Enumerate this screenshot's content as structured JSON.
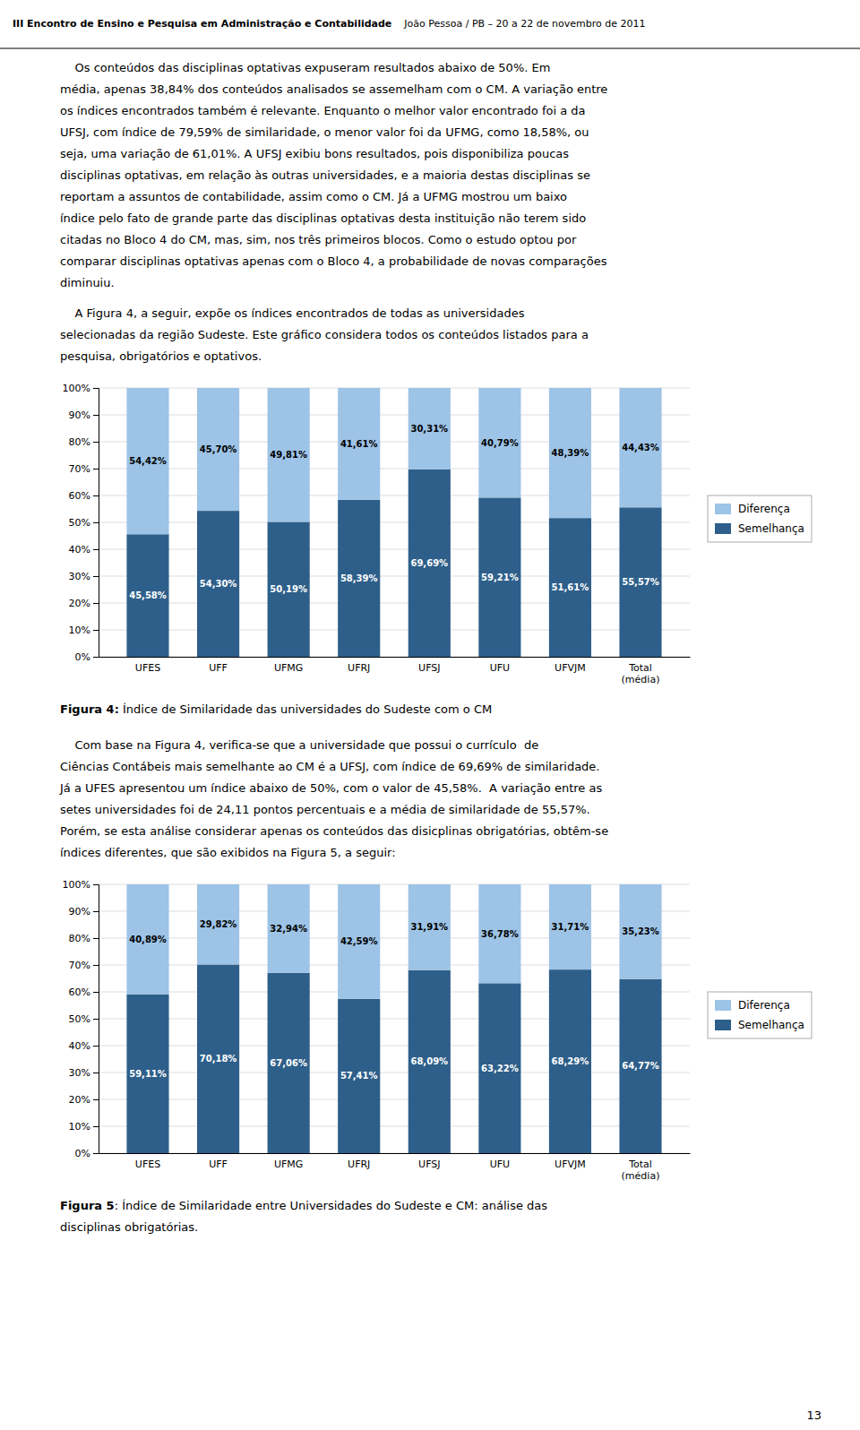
{
  "page": {
    "header_bold": "III Encontro de Ensino e Pesquisa em Administração e Contabilidade",
    "header_normal": "    João Pessoa / PB – 20 a 22 de novembro de 2011",
    "para1_lines": [
      "    Os conteúdos das disciplinas optativas expuseram resultados abaixo de 50%. Em",
      "média, apenas 38,84% dos conteúdos analisados se assemelham com o CM. A variação entre",
      "os índices encontrados também é relevante. Enquanto o melhor valor encontrado foi a da",
      "UFSJ, com índice de 79,59% de similaridade, o menor valor foi da UFMG, como 18,58%, ou",
      "seja, uma variação de 61,01%. A UFSJ exibiu bons resultados, pois disponibiliza poucas",
      "disciplinas optativas, em relação às outras universidades, e a maioria destas disciplinas se",
      "reportam a assuntos de contabilidade, assim como o CM. Já a UFMG mostrou um baixo",
      "índice pelo fato de grande parte das disciplinas optativas desta instituição não terem sido",
      "citadas no Bloco 4 do CM, mas, sim, nos três primeiros blocos. Como o estudo optou por",
      "comparar disciplinas optativas apenas com o Bloco 4, a probabilidade de novas comparações",
      "diminuiu."
    ],
    "para2_lines": [
      "    A Figura 4, a seguir, expõe os índices encontrados de todas as universidades",
      "selecionadas da região Sudeste. Este gráfico considera todos os conteúdos listados para a",
      "pesquisa, obrigatórios e optativos."
    ],
    "caption1_bold": "Figura 4:",
    "caption1_normal": " Índice de Similaridade das universidades do Sudeste com o CM",
    "para3_lines": [
      "    Com base na Figura 4, verifica-se que a universidade que possui o currículo  de",
      "Ciências Contábeis mais semelhante ao CM é a UFSJ, com índice de 69,69% de similaridade.",
      "Já a UFES apresentou um índice abaixo de 50%, com o valor de 45,58%.  A variação entre as",
      "setes universidades foi de 24,11 pontos percentuais e a média de similaridade de 55,57%.",
      "Porém, se esta análise considerar apenas os conteúdos das disicplinas obrigatórias, obtêm-se",
      "índices diferentes, que são exibidos na Figura 5, a seguir:"
    ],
    "caption2_bold": "Figura 5",
    "caption2_normal": ": Índice de Similaridade entre Universidades do Sudeste e CM: análise das",
    "caption2_line2": "disciplinas obrigatórias.",
    "page_number": "13"
  },
  "chart_data": [
    {
      "type": "bar",
      "stacked": true,
      "categories": [
        "UFES",
        "UFF",
        "UFMG",
        "UFRJ",
        "UFSJ",
        "UFU",
        "UFVJM",
        "Total\n(média)"
      ],
      "series": [
        {
          "name": "Semelhança",
          "color": "#2E5F8A",
          "values": [
            45.58,
            54.3,
            50.19,
            58.39,
            69.69,
            59.21,
            51.61,
            55.57
          ],
          "value_labels": [
            "45,58%",
            "54,30%",
            "50,19%",
            "58,39%",
            "69,69%",
            "59,21%",
            "51,61%",
            "55,57%"
          ]
        },
        {
          "name": "Diferença",
          "color": "#9DC3E6",
          "values": [
            54.42,
            45.7,
            49.81,
            41.61,
            30.31,
            40.79,
            48.39,
            44.43
          ],
          "value_labels": [
            "54,42%",
            "45,70%",
            "49,81%",
            "41,61%",
            "30,31%",
            "40,79%",
            "48,39%",
            "44,43%"
          ]
        }
      ],
      "ylim": [
        0,
        100
      ],
      "yticks": [
        {
          "value": 0,
          "label": "0%"
        },
        {
          "value": 10,
          "label": "10%"
        },
        {
          "value": 20,
          "label": "20%"
        },
        {
          "value": 30,
          "label": "30%"
        },
        {
          "value": 40,
          "label": "40%"
        },
        {
          "value": 50,
          "label": "50%"
        },
        {
          "value": 60,
          "label": "60%"
        },
        {
          "value": 70,
          "label": "70%"
        },
        {
          "value": 80,
          "label": "80%"
        },
        {
          "value": 90,
          "label": "90%"
        },
        {
          "value": 100,
          "label": "100%"
        }
      ],
      "grid": true,
      "legend": "right",
      "data_labels": true
    },
    {
      "type": "bar",
      "stacked": true,
      "categories": [
        "UFES",
        "UFF",
        "UFMG",
        "UFRJ",
        "UFSJ",
        "UFU",
        "UFVJM",
        "Total\n(média)"
      ],
      "series": [
        {
          "name": "Semelhança",
          "color": "#2E5F8A",
          "values": [
            59.11,
            70.18,
            67.06,
            57.41,
            68.09,
            63.22,
            68.29,
            64.77
          ],
          "value_labels": [
            "59,11%",
            "70,18%",
            "67,06%",
            "57,41%",
            "68,09%",
            "63,22%",
            "68,29%",
            "64,77%"
          ]
        },
        {
          "name": "Diferença",
          "color": "#9DC3E6",
          "values": [
            40.89,
            29.82,
            32.94,
            42.59,
            31.91,
            36.78,
            31.71,
            35.23
          ],
          "value_labels": [
            "40,89%",
            "29,82%",
            "32,94%",
            "42,59%",
            "31,91%",
            "36,78%",
            "31,71%",
            "35,23%"
          ]
        }
      ],
      "ylim": [
        0,
        100
      ],
      "yticks": [
        {
          "value": 0,
          "label": "0%"
        },
        {
          "value": 10,
          "label": "10%"
        },
        {
          "value": 20,
          "label": "20%"
        },
        {
          "value": 30,
          "label": "30%"
        },
        {
          "value": 40,
          "label": "40%"
        },
        {
          "value": 50,
          "label": "50%"
        },
        {
          "value": 60,
          "label": "60%"
        },
        {
          "value": 70,
          "label": "70%"
        },
        {
          "value": 80,
          "label": "80%"
        },
        {
          "value": 90,
          "label": "90%"
        },
        {
          "value": 100,
          "label": "100%"
        }
      ],
      "grid": true,
      "legend": "right",
      "data_labels": true
    }
  ]
}
